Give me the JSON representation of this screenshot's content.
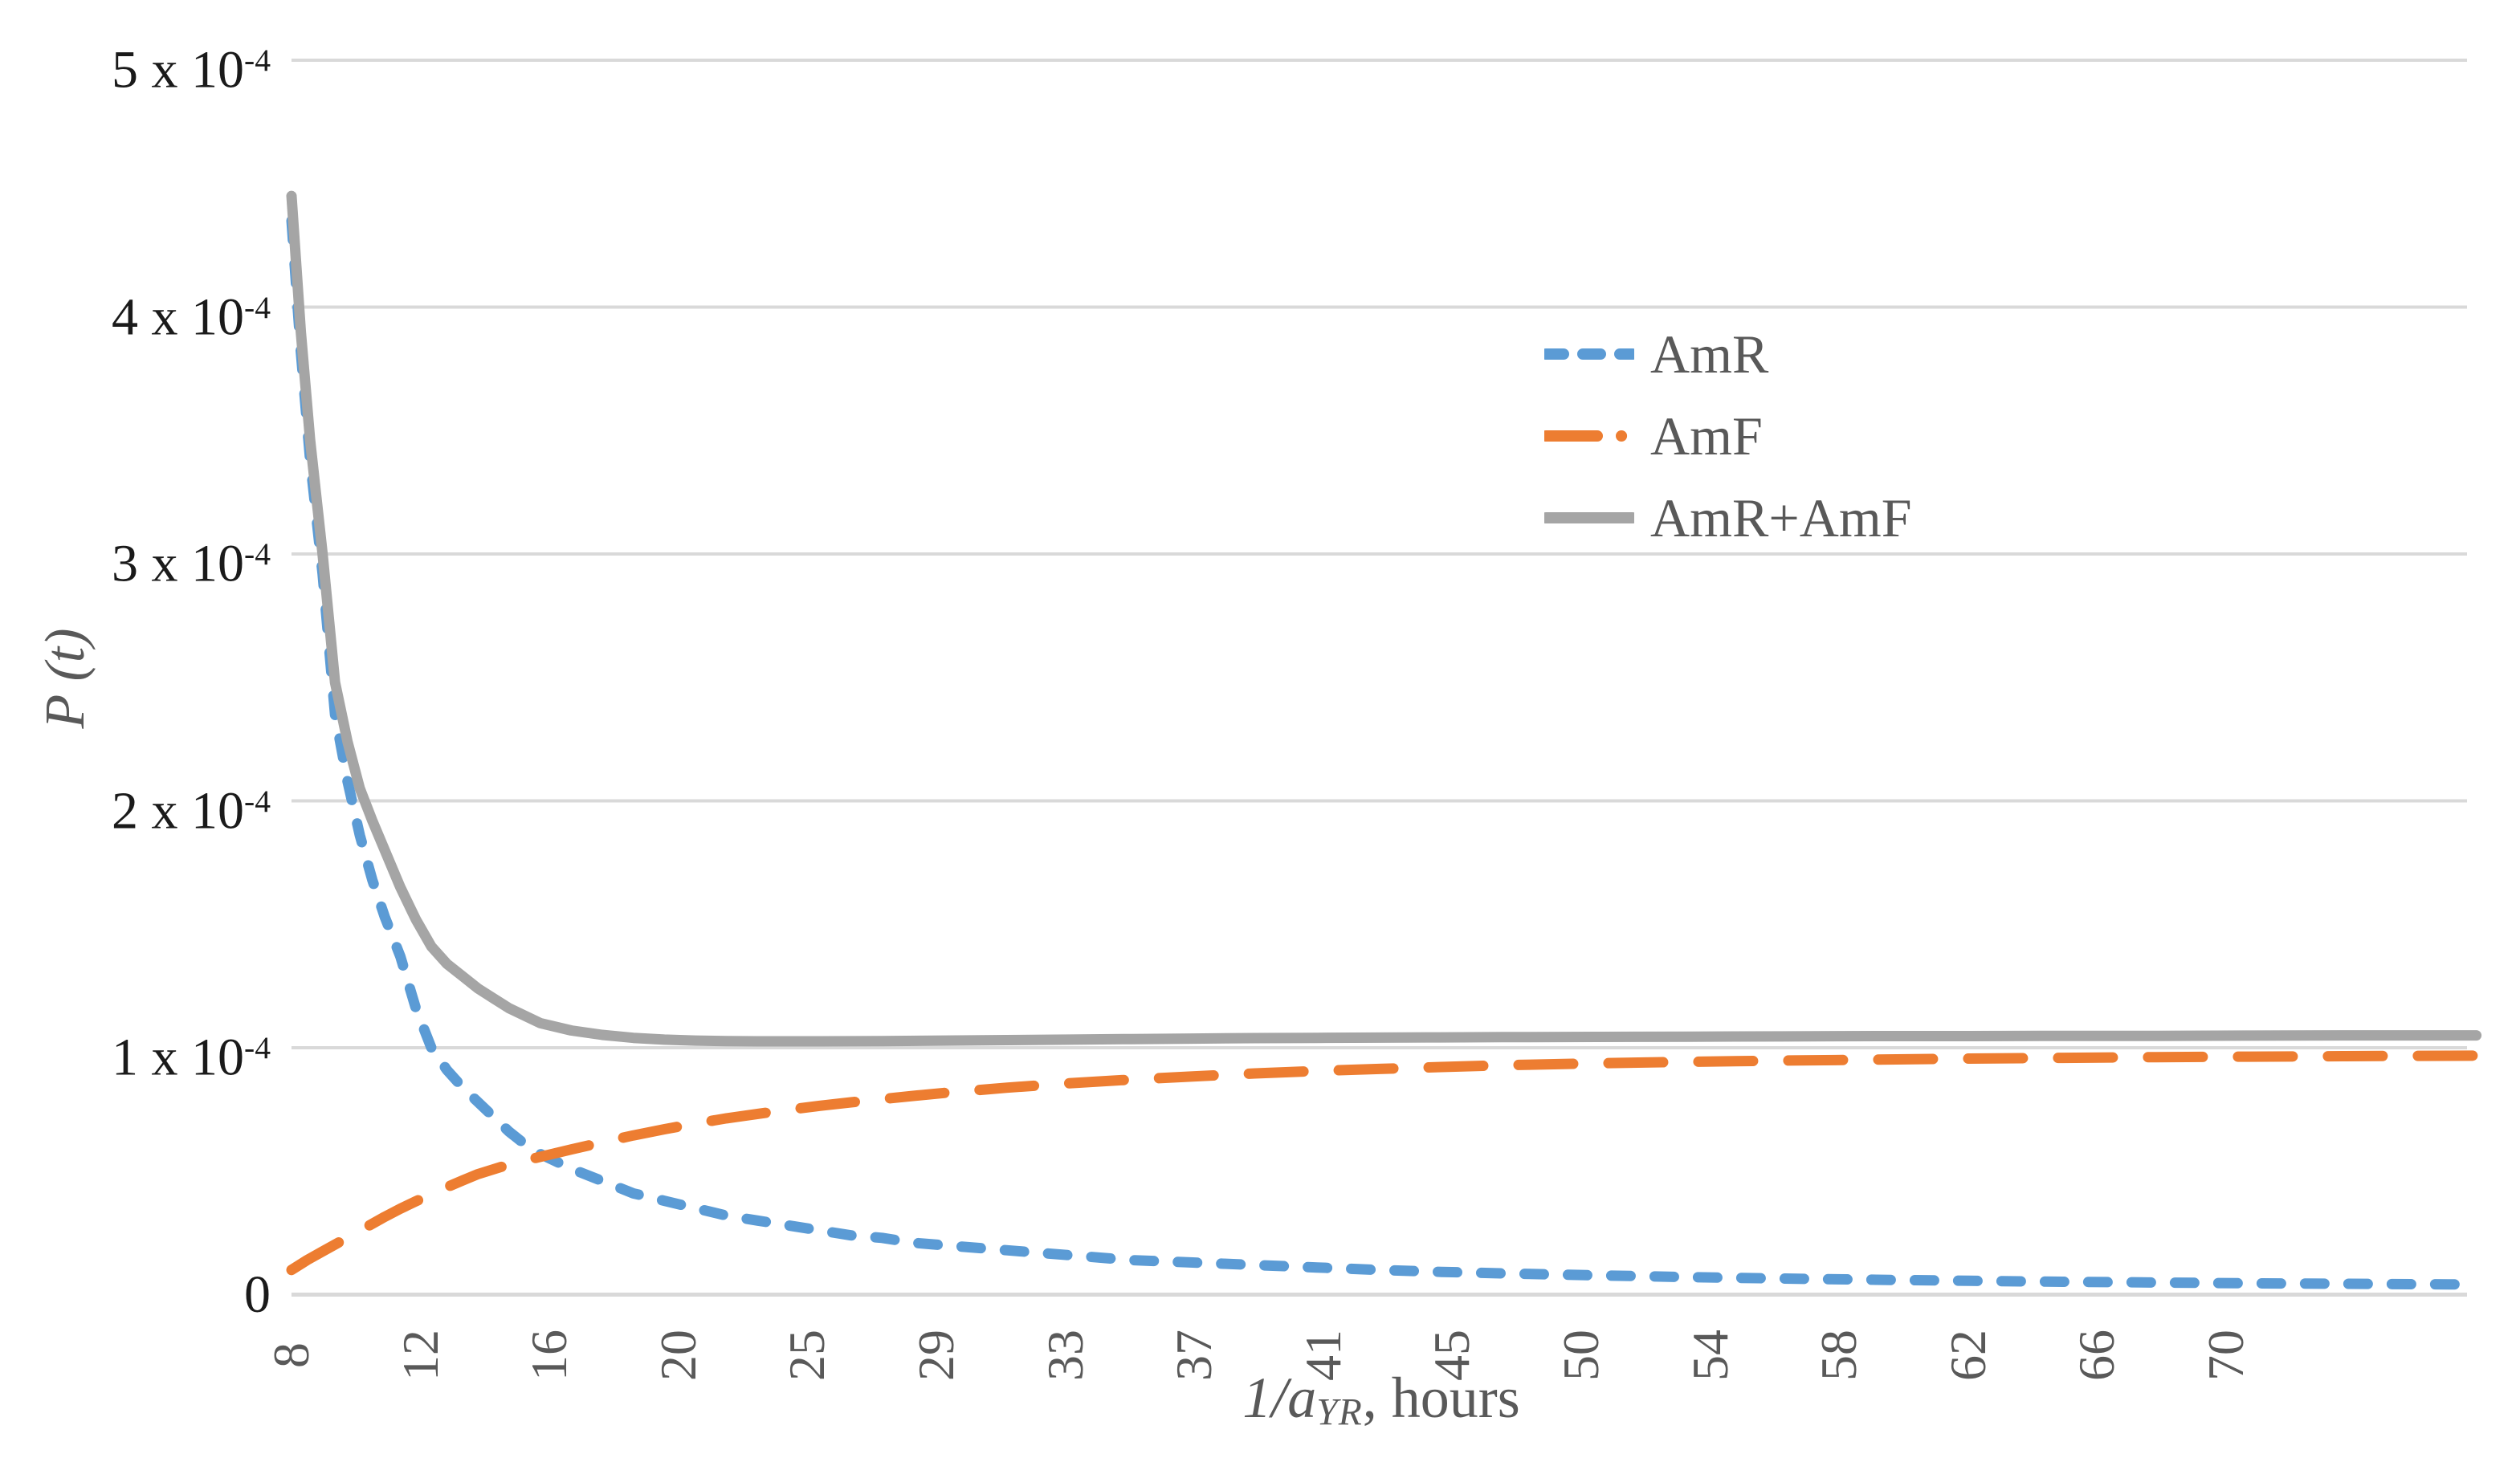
{
  "chart_data": {
    "type": "line",
    "title": "",
    "ylabel": "P (t)",
    "xlabel_parts": {
      "lead": "1/a",
      "sub": "YR",
      "rest": ", hours"
    },
    "xlabel_plain": "1/aYR, hours",
    "legend_position": "inside-upper-right",
    "grid": "horizontal",
    "x_range": [
      8,
      78.3
    ],
    "y_range": [
      0,
      0.0005
    ],
    "y_unit_note": "y tick labels shown as n x 10^-4",
    "x_ticks": [
      {
        "label": "8",
        "t": 8.0
      },
      {
        "label": "12",
        "t": 12.15
      },
      {
        "label": "16",
        "t": 16.3
      },
      {
        "label": "20",
        "t": 20.45
      },
      {
        "label": "25",
        "t": 24.6
      },
      {
        "label": "29",
        "t": 28.75
      },
      {
        "label": "33",
        "t": 32.9
      },
      {
        "label": "37",
        "t": 37.05
      },
      {
        "label": "41",
        "t": 41.2
      },
      {
        "label": "45",
        "t": 45.35
      },
      {
        "label": "50",
        "t": 49.5
      },
      {
        "label": "54",
        "t": 53.65
      },
      {
        "label": "58",
        "t": 57.8
      },
      {
        "label": "62",
        "t": 61.95
      },
      {
        "label": "66",
        "t": 66.1
      },
      {
        "label": "70",
        "t": 70.25
      }
    ],
    "y_ticks": [
      {
        "text": "5 x 10",
        "sup": "-4",
        "value": 5
      },
      {
        "text": "4 x 10",
        "sup": "-4",
        "value": 4
      },
      {
        "text": "3 x 10",
        "sup": "-4",
        "value": 3
      },
      {
        "text": "2 x 10",
        "sup": "-4",
        "value": 2
      },
      {
        "text": "1 x 10",
        "sup": "-4",
        "value": 1
      },
      {
        "text": "0",
        "sup": "",
        "value": 0
      }
    ],
    "series": [
      {
        "name": "AmR",
        "color": "#5B9BD5",
        "line_style": "short-dash",
        "dash": "24 30",
        "swatch_dash": "22 24",
        "points_t_value_e4": [
          [
            8,
            4.35
          ],
          [
            8.3,
            3.82
          ],
          [
            8.6,
            3.38
          ],
          [
            9,
            2.92
          ],
          [
            9.4,
            2.35
          ],
          [
            9.8,
            2.08
          ],
          [
            10.2,
            1.86
          ],
          [
            10.6,
            1.68
          ],
          [
            11,
            1.53
          ],
          [
            11.5,
            1.37
          ],
          [
            12,
            1.16
          ],
          [
            12.5,
            1.0
          ],
          [
            13,
            0.91
          ],
          [
            13.5,
            0.84
          ],
          [
            14,
            0.78
          ],
          [
            14.5,
            0.72
          ],
          [
            15,
            0.66
          ],
          [
            15.5,
            0.61
          ],
          [
            16,
            0.57
          ],
          [
            17,
            0.51
          ],
          [
            18,
            0.46
          ],
          [
            19,
            0.41
          ],
          [
            20,
            0.38
          ],
          [
            21,
            0.35
          ],
          [
            22,
            0.32
          ],
          [
            23,
            0.3
          ],
          [
            24,
            0.28
          ],
          [
            25,
            0.26
          ],
          [
            26,
            0.24
          ],
          [
            27,
            0.23
          ],
          [
            28,
            0.21
          ],
          [
            29,
            0.2
          ],
          [
            31,
            0.18
          ],
          [
            33,
            0.16
          ],
          [
            35,
            0.14
          ],
          [
            37,
            0.13
          ],
          [
            39,
            0.12
          ],
          [
            41,
            0.11
          ],
          [
            43,
            0.1
          ],
          [
            45,
            0.092
          ],
          [
            47,
            0.086
          ],
          [
            50,
            0.078
          ],
          [
            53,
            0.071
          ],
          [
            56,
            0.065
          ],
          [
            59,
            0.06
          ],
          [
            62,
            0.056
          ],
          [
            65,
            0.052
          ],
          [
            68,
            0.049
          ],
          [
            71,
            0.046
          ],
          [
            74,
            0.044
          ],
          [
            78.3,
            0.041
          ]
        ]
      },
      {
        "name": "AmF",
        "color": "#ED7D31",
        "line_style": "long-dash",
        "dash": "68 44",
        "swatch_dash": "64 30 0.1 30",
        "points_t_value_e4": [
          [
            8,
            0.1
          ],
          [
            8.5,
            0.14
          ],
          [
            9,
            0.175
          ],
          [
            9.5,
            0.21
          ],
          [
            10,
            0.245
          ],
          [
            10.5,
            0.28
          ],
          [
            11,
            0.315
          ],
          [
            11.5,
            0.348
          ],
          [
            12,
            0.378
          ],
          [
            12.5,
            0.407
          ],
          [
            13,
            0.435
          ],
          [
            13.5,
            0.462
          ],
          [
            14,
            0.488
          ],
          [
            15,
            0.527
          ],
          [
            16,
            0.558
          ],
          [
            17,
            0.588
          ],
          [
            18,
            0.617
          ],
          [
            19,
            0.645
          ],
          [
            20,
            0.67
          ],
          [
            21,
            0.693
          ],
          [
            22,
            0.714
          ],
          [
            23,
            0.732
          ],
          [
            24,
            0.749
          ],
          [
            25,
            0.765
          ],
          [
            26,
            0.779
          ],
          [
            27,
            0.792
          ],
          [
            28,
            0.805
          ],
          [
            29,
            0.817
          ],
          [
            31,
            0.838
          ],
          [
            33,
            0.856
          ],
          [
            35,
            0.871
          ],
          [
            37,
            0.884
          ],
          [
            39,
            0.896
          ],
          [
            41,
            0.906
          ],
          [
            43,
            0.914
          ],
          [
            45,
            0.922
          ],
          [
            47,
            0.929
          ],
          [
            50,
            0.937
          ],
          [
            53,
            0.943
          ],
          [
            56,
            0.948
          ],
          [
            59,
            0.952
          ],
          [
            62,
            0.956
          ],
          [
            65,
            0.959
          ],
          [
            68,
            0.962
          ],
          [
            71,
            0.964
          ],
          [
            74,
            0.966
          ],
          [
            78.3,
            0.968
          ]
        ]
      },
      {
        "name": "AmR+AmF",
        "color": "#A5A5A5",
        "line_style": "solid",
        "dash": "",
        "swatch_dash": "",
        "points_t_value_e4": [
          [
            8,
            4.45
          ],
          [
            8.3,
            3.9
          ],
          [
            8.6,
            3.46
          ],
          [
            9,
            3.0
          ],
          [
            9.4,
            2.48
          ],
          [
            9.8,
            2.24
          ],
          [
            10.2,
            2.05
          ],
          [
            10.6,
            1.92
          ],
          [
            11,
            1.8
          ],
          [
            11.5,
            1.65
          ],
          [
            12,
            1.52
          ],
          [
            12.5,
            1.41
          ],
          [
            13,
            1.34
          ],
          [
            13.5,
            1.29
          ],
          [
            14,
            1.24
          ],
          [
            14.5,
            1.2
          ],
          [
            15,
            1.16
          ],
          [
            16,
            1.1
          ],
          [
            17,
            1.07
          ],
          [
            18,
            1.052
          ],
          [
            19,
            1.04
          ],
          [
            20,
            1.033
          ],
          [
            21,
            1.029
          ],
          [
            22,
            1.027
          ],
          [
            23,
            1.026
          ],
          [
            24,
            1.026
          ],
          [
            25,
            1.026
          ],
          [
            27,
            1.027
          ],
          [
            29,
            1.029
          ],
          [
            31,
            1.031
          ],
          [
            33,
            1.033
          ],
          [
            35,
            1.035
          ],
          [
            37,
            1.037
          ],
          [
            39,
            1.039
          ],
          [
            41,
            1.04
          ],
          [
            43,
            1.041
          ],
          [
            45,
            1.042
          ],
          [
            47,
            1.043
          ],
          [
            50,
            1.044
          ],
          [
            53,
            1.045
          ],
          [
            56,
            1.046
          ],
          [
            59,
            1.047
          ],
          [
            62,
            1.047
          ],
          [
            65,
            1.048
          ],
          [
            68,
            1.048
          ],
          [
            71,
            1.049
          ],
          [
            74,
            1.05
          ],
          [
            78.3,
            1.05
          ]
        ]
      }
    ]
  },
  "colors": {
    "gridline": "#D9D9D9",
    "axis_line": "#D9D9D9",
    "x_tick_label": "#595959",
    "y_tick_label": "#1a1a1a",
    "legend_text": "#595959",
    "background": "#ffffff"
  }
}
